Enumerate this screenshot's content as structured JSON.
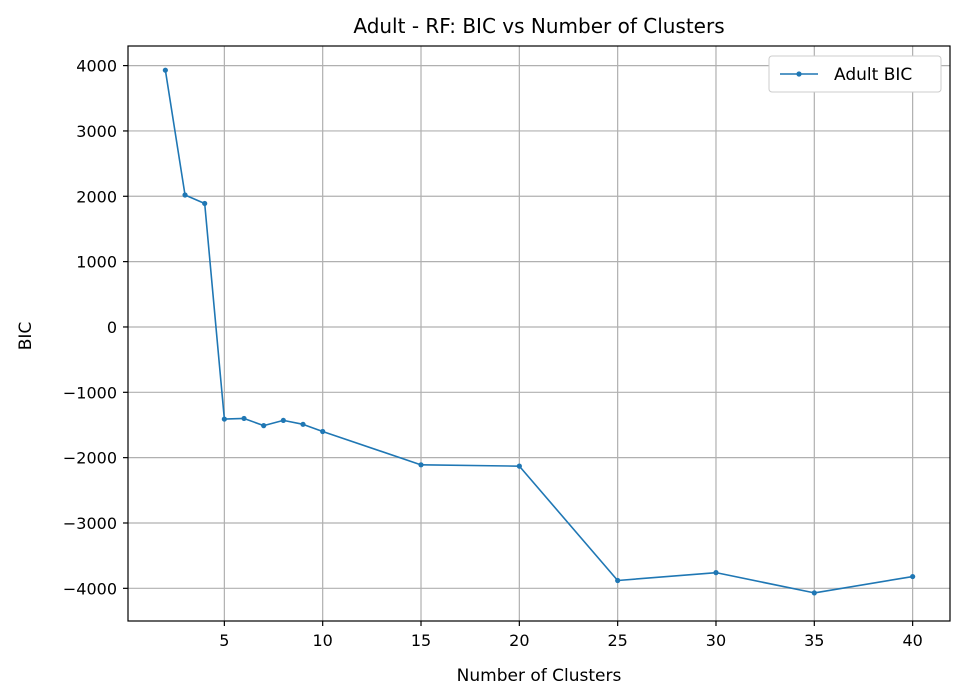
{
  "chart_data": {
    "type": "line",
    "title": "Adult - RF: BIC vs Number of Clusters",
    "xlabel": "Number of Clusters",
    "ylabel": "BIC",
    "xlim": [
      0.1,
      41.9
    ],
    "ylim": [
      -4500,
      4300
    ],
    "xticks": [
      5,
      10,
      15,
      20,
      25,
      30,
      35,
      40
    ],
    "yticks": [
      -4000,
      -3000,
      -2000,
      -1000,
      0,
      1000,
      2000,
      3000,
      4000
    ],
    "grid": true,
    "legend_position": "top-right",
    "series": [
      {
        "name": "Adult BIC",
        "color": "#1f77b4",
        "marker": "circle",
        "x": [
          2,
          3,
          4,
          5,
          6,
          7,
          8,
          9,
          10,
          15,
          20,
          25,
          30,
          35,
          40
        ],
        "y": [
          3930,
          2020,
          1890,
          -1410,
          -1400,
          -1510,
          -1430,
          -1490,
          -1600,
          -2110,
          -2130,
          -3880,
          -3760,
          -4070,
          -3820
        ]
      }
    ]
  }
}
